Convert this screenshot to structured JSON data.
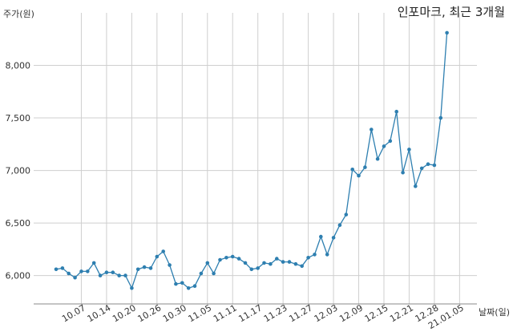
{
  "chart_data": {
    "type": "line",
    "title": "인포마크, 최근 3개월",
    "ylabel": "주가(원)",
    "xlabel": "날짜(일)",
    "ylim": [
      5730,
      8500
    ],
    "yticks": [
      6000,
      6500,
      7000,
      7500,
      8000
    ],
    "ytick_labels": [
      "6,000",
      "6,500",
      "7,000",
      "7,500",
      "8,000"
    ],
    "xtick_labels": [
      "10.07",
      "10.14",
      "10.20",
      "10.26",
      "10.30",
      "11.05",
      "11.11",
      "11.17",
      "11.23",
      "11.27",
      "12.03",
      "12.09",
      "12.15",
      "12.21",
      "12.28",
      "21.01.05"
    ],
    "xtick_index": [
      4,
      8,
      12,
      16,
      20,
      24,
      28,
      32,
      36,
      40,
      44,
      48,
      52,
      56,
      60,
      64
    ],
    "grid": true,
    "color": "#2e7fb0",
    "values": [
      6060,
      6070,
      6020,
      5980,
      6040,
      6040,
      6120,
      6000,
      6030,
      6030,
      6000,
      6000,
      5880,
      6060,
      6080,
      6070,
      6180,
      6230,
      6100,
      5920,
      5930,
      5880,
      5900,
      6020,
      6120,
      6020,
      6150,
      6170,
      6180,
      6160,
      6120,
      6060,
      6070,
      6120,
      6110,
      6160,
      6130,
      6130,
      6110,
      6090,
      6170,
      6200,
      6370,
      6200,
      6360,
      6480,
      6580,
      7010,
      6950,
      7030,
      7390,
      7110,
      7230,
      7280,
      7560,
      6980,
      7200,
      6850,
      7020,
      7060,
      7050,
      7500,
      8310
    ]
  }
}
